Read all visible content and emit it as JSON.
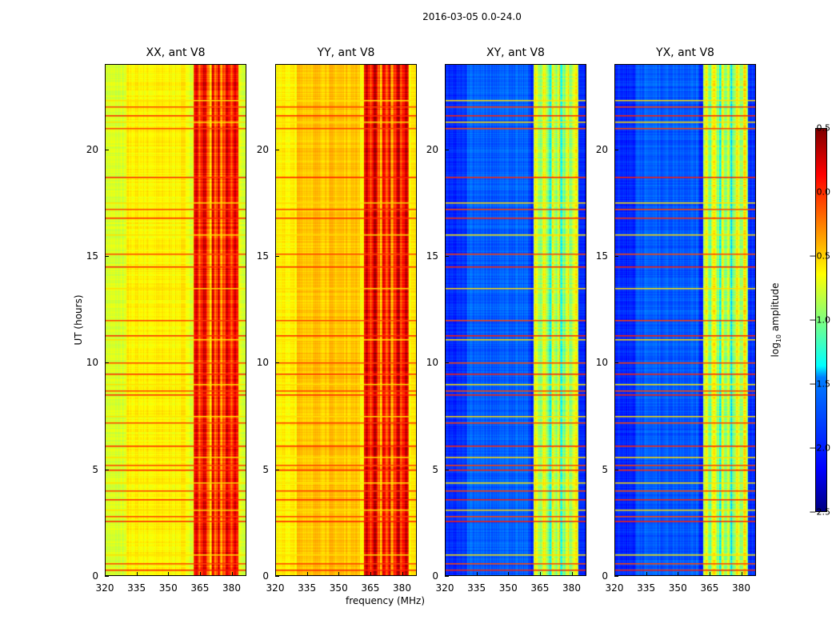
{
  "chart_data": {
    "type": "heatmap",
    "title": "2016-03-05 0.0-24.0",
    "xlabel": "frequency (MHz)",
    "ylabel": "UT (hours)",
    "xlim": [
      320,
      387
    ],
    "ylim": [
      0,
      24
    ],
    "xticks": [
      "320",
      "335",
      "350",
      "365",
      "380"
    ],
    "yticks": [
      "0",
      "5",
      "10",
      "15",
      "20"
    ],
    "colorbar": {
      "label_prefix": "log",
      "label_sub": "10",
      "label_suffix": " amplitude",
      "range": [
        -2.5,
        0.5
      ],
      "ticks": [
        "0.5",
        "0.0",
        "−0.5",
        "−1.0",
        "−1.5",
        "−2.0",
        "−2.5"
      ],
      "colormap": "jet"
    },
    "panels": [
      {
        "title": "XX, ant V8",
        "base_level": -0.75,
        "band_level": 0.05,
        "band_mhz": [
          362,
          383
        ]
      },
      {
        "title": "YY, ant V8",
        "base_level": -0.6,
        "band_level": 0.1,
        "band_mhz": [
          362,
          383
        ]
      },
      {
        "title": "XY, ant V8",
        "base_level": -2.0,
        "band_level": -0.8,
        "band_mhz": [
          362,
          383
        ]
      },
      {
        "title": "YX, ant V8",
        "base_level": -2.0,
        "band_level": -0.8,
        "band_mhz": [
          362,
          383
        ]
      }
    ],
    "rfi_hours": [
      0.3,
      0.6,
      1.0,
      2.6,
      2.8,
      3.1,
      3.6,
      4.0,
      4.4,
      5.0,
      5.2,
      5.6,
      6.1,
      7.2,
      7.5,
      8.5,
      8.7,
      9.0,
      9.5,
      10.0,
      11.1,
      11.3,
      12.0,
      13.5,
      14.5,
      15.1,
      16.0,
      16.8,
      17.2,
      17.5,
      18.7,
      21.0,
      21.3,
      21.6,
      22.0,
      22.3
    ]
  }
}
